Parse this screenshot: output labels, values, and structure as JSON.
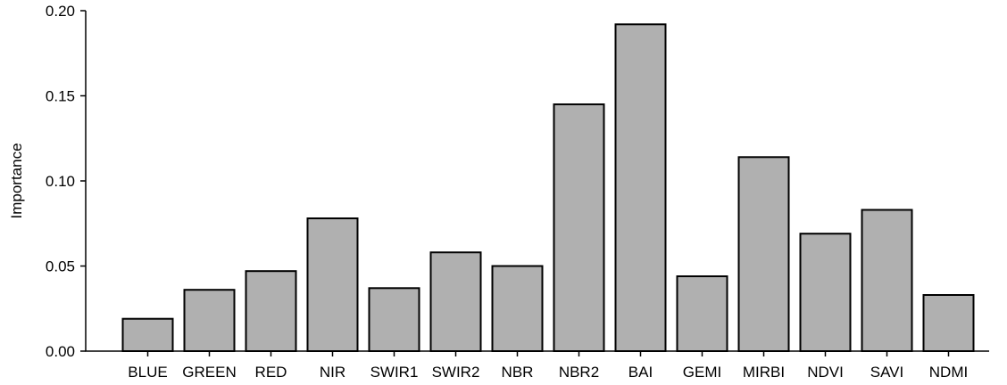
{
  "chart_data": {
    "type": "bar",
    "categories": [
      "BLUE",
      "GREEN",
      "RED",
      "NIR",
      "SWIR1",
      "SWIR2",
      "NBR",
      "NBR2",
      "BAI",
      "GEMI",
      "MIRBI",
      "NDVI",
      "SAVI",
      "NDMI"
    ],
    "values": [
      0.019,
      0.036,
      0.047,
      0.078,
      0.037,
      0.058,
      0.05,
      0.145,
      0.192,
      0.044,
      0.114,
      0.069,
      0.083,
      0.033
    ],
    "title": "",
    "xlabel": "",
    "ylabel": "Importance",
    "ylim": [
      0,
      0.2
    ],
    "yticks": [
      "0.00",
      "0.05",
      "0.10",
      "0.15",
      "0.20"
    ],
    "bar_color": "#b0b0b0",
    "edge_color": "#000000",
    "grid": false,
    "spines": "left-bottom"
  }
}
